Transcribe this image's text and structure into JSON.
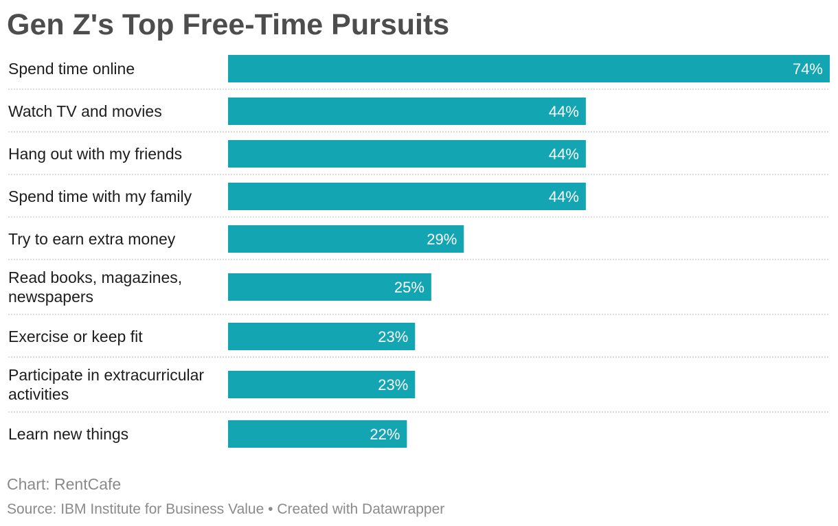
{
  "title": "Gen Z's Top Free-Time Pursuits",
  "chart_data": {
    "type": "bar",
    "orientation": "horizontal",
    "title": "Gen Z's Top Free-Time Pursuits",
    "categories": [
      "Spend time online",
      "Watch TV and movies",
      "Hang out with my friends",
      "Spend time with my family",
      "Try to earn extra money",
      "Read books, magazines, newspapers",
      "Exercise or keep fit",
      "Participate in extracurricular activities",
      "Learn new things"
    ],
    "label_lines": [
      [
        "Spend time online"
      ],
      [
        "Watch TV and movies"
      ],
      [
        "Hang out with my friends"
      ],
      [
        "Spend time with my family"
      ],
      [
        "Try to earn extra money"
      ],
      [
        "Read books, magazines,",
        "newspapers"
      ],
      [
        "Exercise or keep fit"
      ],
      [
        "Participate in extracurricular",
        "activities"
      ],
      [
        "Learn new things"
      ]
    ],
    "values": [
      74,
      44,
      44,
      44,
      29,
      25,
      23,
      23,
      22
    ],
    "value_labels": [
      "74%",
      "44%",
      "44%",
      "44%",
      "29%",
      "25%",
      "23%",
      "23%",
      "22%"
    ],
    "unit": "%",
    "xlim": [
      0,
      74
    ],
    "xlabel": "",
    "ylabel": "",
    "grid": false,
    "legend": "none"
  },
  "colors": {
    "bar": "#14a5b3",
    "separator": "#c8c8c8",
    "title": "#4d4d4d",
    "muted": "#8a8a8a"
  },
  "footer": {
    "chart_credit": "Chart: RentCafe",
    "source": "Source: IBM Institute for Business Value",
    "separator": " • ",
    "created_with": "Created with Datawrapper"
  }
}
